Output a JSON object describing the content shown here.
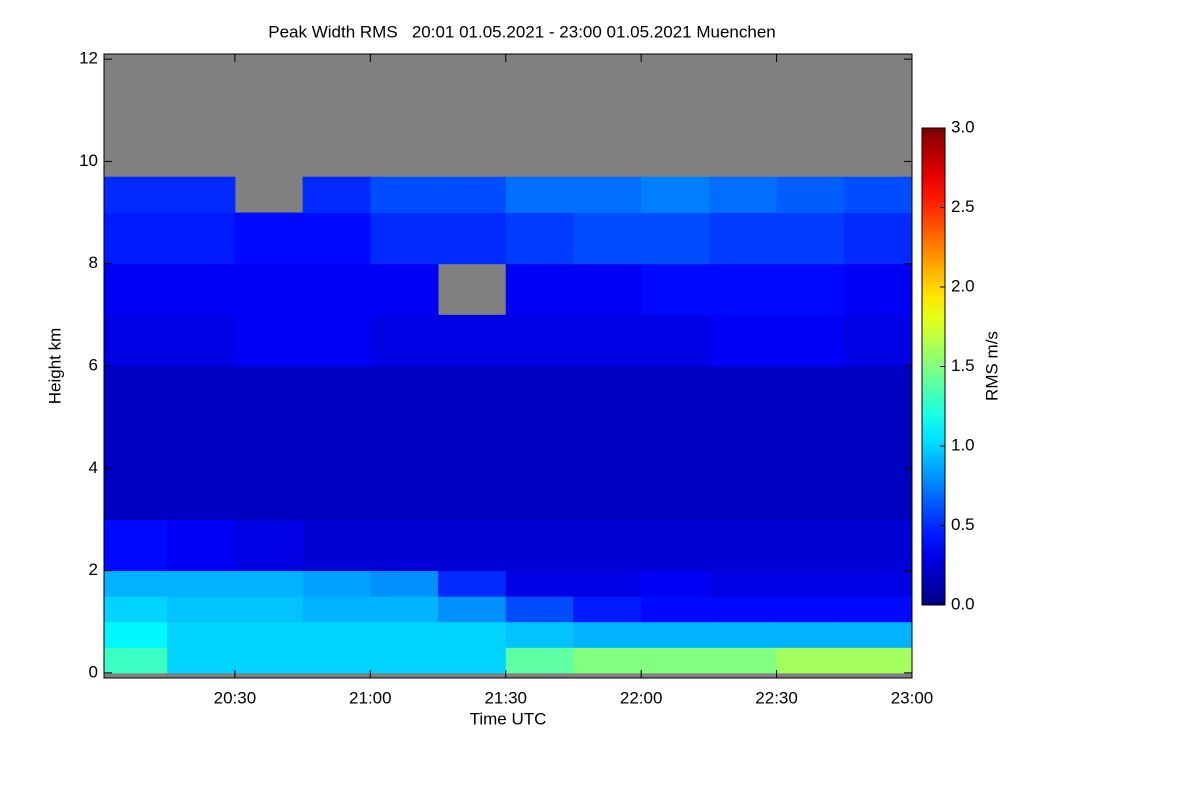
{
  "chart_data": {
    "type": "heatmap",
    "title": "Peak Width RMS   20:01 01.05.2021 - 23:00 01.05.2021 Muenchen",
    "x_label": "Time UTC",
    "y_label": "Height km",
    "colorbar_label": "RMS m/s",
    "colormap": "jet",
    "no_data_color": "#808080",
    "xbins": [
      "20:01",
      "20:15",
      "20:30",
      "20:45",
      "21:00",
      "21:15",
      "21:30",
      "21:45",
      "22:00",
      "22:15",
      "22:30",
      "22:45",
      "23:00"
    ],
    "ybins": [
      0,
      0.5,
      1,
      1.5,
      2,
      3,
      4,
      5,
      6,
      7,
      8,
      9,
      9.7
    ],
    "z": [
      [
        1.3,
        1.0,
        1.0,
        1.0,
        1.0,
        1.0,
        1.4,
        1.5,
        1.5,
        1.5,
        1.6,
        1.6
      ],
      [
        1.1,
        1.0,
        1.0,
        1.0,
        1.0,
        1.0,
        0.95,
        0.9,
        0.9,
        0.9,
        0.9,
        0.9
      ],
      [
        1.0,
        0.95,
        0.95,
        0.9,
        0.9,
        0.8,
        0.6,
        0.45,
        0.4,
        0.4,
        0.4,
        0.4
      ],
      [
        0.9,
        0.9,
        0.9,
        0.85,
        0.8,
        0.5,
        0.3,
        0.3,
        0.35,
        0.3,
        0.3,
        0.3
      ],
      [
        0.4,
        0.35,
        0.3,
        0.25,
        0.25,
        0.25,
        0.25,
        0.25,
        0.25,
        0.25,
        0.25,
        0.25
      ],
      [
        0.2,
        0.2,
        0.2,
        0.2,
        0.2,
        0.2,
        0.2,
        0.2,
        0.2,
        0.2,
        0.2,
        0.2
      ],
      [
        0.2,
        0.2,
        0.2,
        0.2,
        0.2,
        0.2,
        0.2,
        0.2,
        0.2,
        0.2,
        0.2,
        0.2
      ],
      [
        0.2,
        0.2,
        0.2,
        0.2,
        0.2,
        0.2,
        0.2,
        0.2,
        0.2,
        0.2,
        0.2,
        0.2
      ],
      [
        0.3,
        0.3,
        0.35,
        0.35,
        0.3,
        0.3,
        0.3,
        0.3,
        0.3,
        0.35,
        0.35,
        0.3
      ],
      [
        0.35,
        0.35,
        0.35,
        0.35,
        0.35,
        null,
        0.35,
        0.35,
        0.4,
        0.4,
        0.4,
        0.35
      ],
      [
        0.45,
        0.45,
        0.4,
        0.4,
        0.5,
        0.5,
        0.55,
        0.6,
        0.6,
        0.55,
        0.55,
        0.5
      ],
      [
        0.5,
        0.5,
        null,
        0.5,
        0.6,
        0.6,
        0.7,
        0.7,
        0.75,
        0.7,
        0.65,
        0.6
      ]
    ],
    "xlim": [
      "20:01",
      "23:00"
    ],
    "xticks": [
      "20:30",
      "21:00",
      "21:30",
      "22:00",
      "22:30",
      "23:00"
    ],
    "ylim": [
      -0.1,
      12.1
    ],
    "yticks": [
      0,
      2,
      4,
      6,
      8,
      10,
      12
    ],
    "clim": [
      0,
      3
    ],
    "cticks": [
      {
        "value": 0,
        "label": "0.0"
      },
      {
        "value": 0.5,
        "label": "0.5"
      },
      {
        "value": 1,
        "label": "1.0"
      },
      {
        "value": 1.5,
        "label": "1.5"
      },
      {
        "value": 2,
        "label": "2.0"
      },
      {
        "value": 2.5,
        "label": "2.5"
      },
      {
        "value": 3,
        "label": "3.0"
      }
    ]
  }
}
